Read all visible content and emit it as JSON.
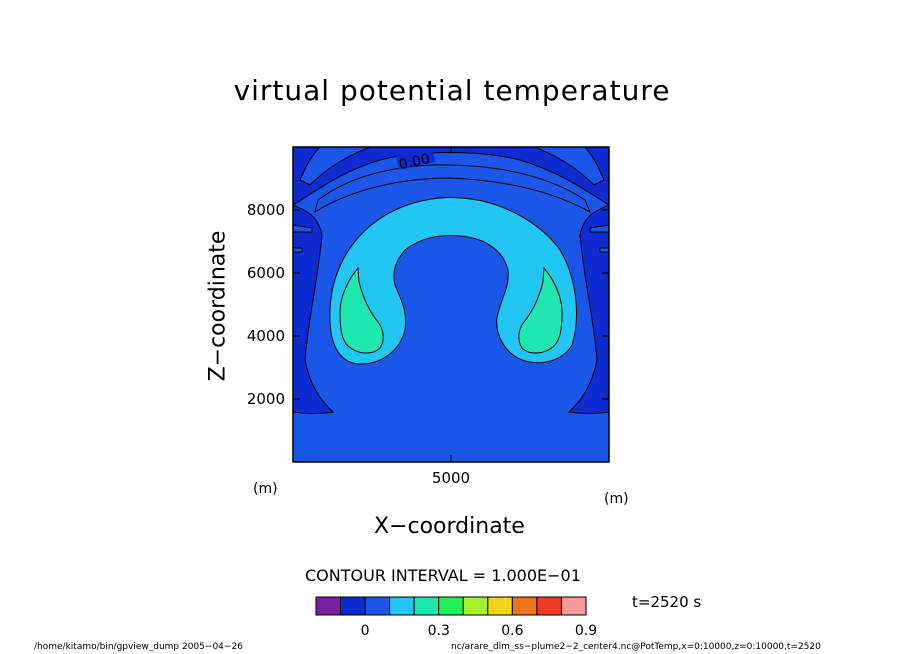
{
  "chart_data": {
    "type": "heatmap",
    "title": "virtual potential temperature",
    "xlabel": "X−coordinate",
    "ylabel": "Z−coordinate",
    "x_unit": "(m)",
    "y_unit": "(m)",
    "xlim": [
      0,
      10000
    ],
    "ylim": [
      0,
      10000
    ],
    "x_ticks": [
      5000
    ],
    "y_ticks": [
      2000,
      4000,
      6000,
      8000
    ],
    "contour_label": "0.00",
    "contour_interval_text": "CONTOUR INTERVAL = 1.000E−01",
    "time_text": "t=2520 s",
    "colorbar": {
      "colors": [
        "#7b1fa2",
        "#0d2bd0",
        "#1a57e8",
        "#22c6f2",
        "#1ee8b0",
        "#22f05a",
        "#a6f22a",
        "#f2d41a",
        "#f2741a",
        "#f23a2a",
        "#f29a9a"
      ],
      "tick_labels": [
        "0",
        "0.3",
        "0.6",
        "0.9"
      ]
    },
    "fill_colors": {
      "background": "#1a57e8",
      "negative": "#0d2bd0",
      "level_0_1": "#22c6f2",
      "level_0_2": "#1ee8b0"
    }
  },
  "footer": {
    "left": "/home/kitamo/bin/gpview_dump  2005−04−26",
    "right": "nc/arare_dlm_ss−plume2−2_center4.nc@PotTemp,x=0:10000,z=0:10000,t=2520"
  }
}
